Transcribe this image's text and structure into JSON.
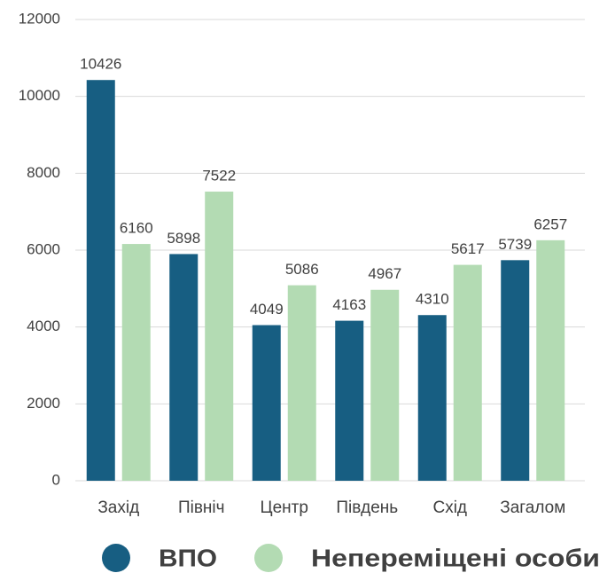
{
  "chart_data": {
    "type": "bar",
    "categories": [
      "Захід",
      "Північ",
      "Центр",
      "Південь",
      "Схід",
      "Загалом"
    ],
    "series": [
      {
        "name": "ВПО",
        "color": "#175e82",
        "values": [
          10426,
          5898,
          4049,
          4163,
          4310,
          5739
        ]
      },
      {
        "name": "Непереміщені особи",
        "color": "#b3dbb3",
        "values": [
          6160,
          7522,
          5086,
          4967,
          5617,
          6257
        ]
      }
    ],
    "ylim": [
      0,
      12000
    ],
    "yticks": [
      0,
      2000,
      4000,
      6000,
      8000,
      10000,
      12000
    ],
    "grid": true,
    "legend": "bottom"
  }
}
